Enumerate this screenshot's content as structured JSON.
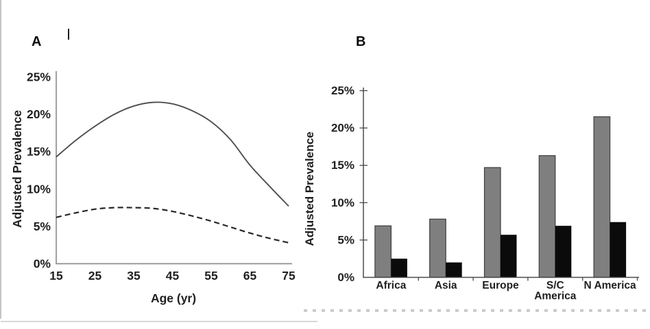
{
  "page": {
    "panel_a_label": "A",
    "panel_b_label": "B"
  },
  "theme": {
    "background": "#ffffff",
    "text_color": "#1f1f1f",
    "panel_a_axis_color": "#8f8f8f",
    "panel_b_axis_color": "#4a4a4a",
    "solid_curve_color": "#4f4f4f",
    "dashed_curve_color": "#262626",
    "gray_bar_color": "#7f7f7f",
    "gray_bar_border_color": "#3c3c3c",
    "black_bar_color": "#0b0b0b",
    "page_border_color": "#c4c4c4"
  },
  "chart_data": [
    {
      "type": "line",
      "panel": "A",
      "title": "",
      "xlabel": "Age (yr)",
      "ylabel": "Adjusted Prevalence",
      "xlim": [
        15,
        75
      ],
      "ylim": [
        0,
        25
      ],
      "xticks": [
        15,
        25,
        35,
        45,
        55,
        65,
        75
      ],
      "ytick_values": [
        0,
        5,
        10,
        15,
        20,
        25
      ],
      "ytick_suffix": "%",
      "grid": false,
      "legend": "none",
      "x": [
        15,
        20,
        25,
        30,
        35,
        40,
        45,
        50,
        55,
        60,
        65,
        70,
        75
      ],
      "series": [
        {
          "name": "solid",
          "style": "solid",
          "values": [
            14.3,
            16.5,
            18.4,
            20.0,
            21.1,
            21.6,
            21.4,
            20.5,
            19.0,
            16.6,
            13.2,
            10.4,
            7.7
          ]
        },
        {
          "name": "dashed",
          "style": "dashed",
          "values": [
            6.2,
            6.8,
            7.3,
            7.5,
            7.5,
            7.4,
            7.0,
            6.4,
            5.7,
            4.9,
            4.1,
            3.4,
            2.8
          ]
        }
      ]
    },
    {
      "type": "bar",
      "panel": "B",
      "title": "",
      "xlabel": "",
      "ylabel": "Adjusted Prevalence",
      "ylim": [
        0,
        25
      ],
      "ytick_values": [
        0,
        5,
        10,
        15,
        20,
        25
      ],
      "ytick_suffix": "%",
      "grid": false,
      "legend": "none",
      "categories": [
        "Africa",
        "Asia",
        "Europe",
        "S/C America",
        "N America"
      ],
      "category_label_lines": [
        [
          "Africa"
        ],
        [
          "Asia"
        ],
        [
          "Europe"
        ],
        [
          "S/C",
          "America"
        ],
        [
          "N America"
        ]
      ],
      "series": [
        {
          "name": "gray",
          "color_key": "gray_bar_color",
          "values": [
            6.9,
            7.8,
            14.7,
            16.3,
            21.5
          ]
        },
        {
          "name": "black",
          "color_key": "black_bar_color",
          "values": [
            2.5,
            2.0,
            5.7,
            6.9,
            7.4
          ]
        }
      ]
    }
  ]
}
